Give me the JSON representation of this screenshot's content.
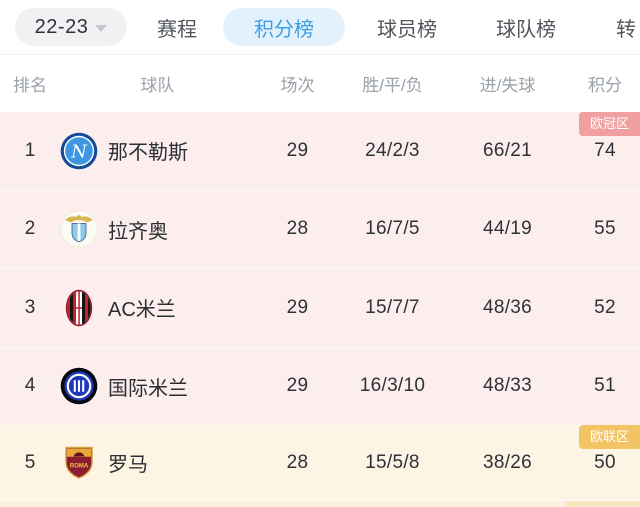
{
  "season_selector": {
    "label": "22-23"
  },
  "tabs": [
    {
      "label": "赛程",
      "active": false
    },
    {
      "label": "积分榜",
      "active": true
    },
    {
      "label": "球员榜",
      "active": false
    },
    {
      "label": "球队榜",
      "active": false
    },
    {
      "label": "转",
      "active": false
    }
  ],
  "standings": {
    "columns": [
      "排名",
      "球队",
      "场次",
      "胜/平/负",
      "进/失球",
      "积分"
    ],
    "zones": {
      "champions": {
        "label": "欧冠区"
      },
      "europa": {
        "label": "欧联区"
      }
    },
    "rows": [
      {
        "rank": "1",
        "team": "那不勒斯",
        "logo": "napoli",
        "played": "29",
        "win_draw_loss": "24/2/3",
        "goals_for_against": "66/21",
        "points": "74",
        "zone": "champions"
      },
      {
        "rank": "2",
        "team": "拉齐奥",
        "logo": "lazio",
        "played": "28",
        "win_draw_loss": "16/7/5",
        "goals_for_against": "44/19",
        "points": "55",
        "zone": "champions"
      },
      {
        "rank": "3",
        "team": "AC米兰",
        "logo": "acmilan",
        "played": "29",
        "win_draw_loss": "15/7/7",
        "goals_for_against": "48/36",
        "points": "52",
        "zone": "champions"
      },
      {
        "rank": "4",
        "team": "国际米兰",
        "logo": "inter",
        "played": "29",
        "win_draw_loss": "16/3/10",
        "goals_for_against": "48/33",
        "points": "51",
        "zone": "champions"
      },
      {
        "rank": "5",
        "team": "罗马",
        "logo": "roma",
        "played": "28",
        "win_draw_loss": "15/5/8",
        "goals_for_against": "38/26",
        "points": "50",
        "zone": "europa"
      }
    ]
  },
  "colors": {
    "accent_blue": "#3f9ee3",
    "active_tab_bg": "#e3f1fc",
    "champions_zone_bg": "#fdeeee",
    "champions_badge": "#f0a0a0",
    "europa_zone_bg": "#fdf4e4",
    "europa_badge": "#f3c465"
  }
}
